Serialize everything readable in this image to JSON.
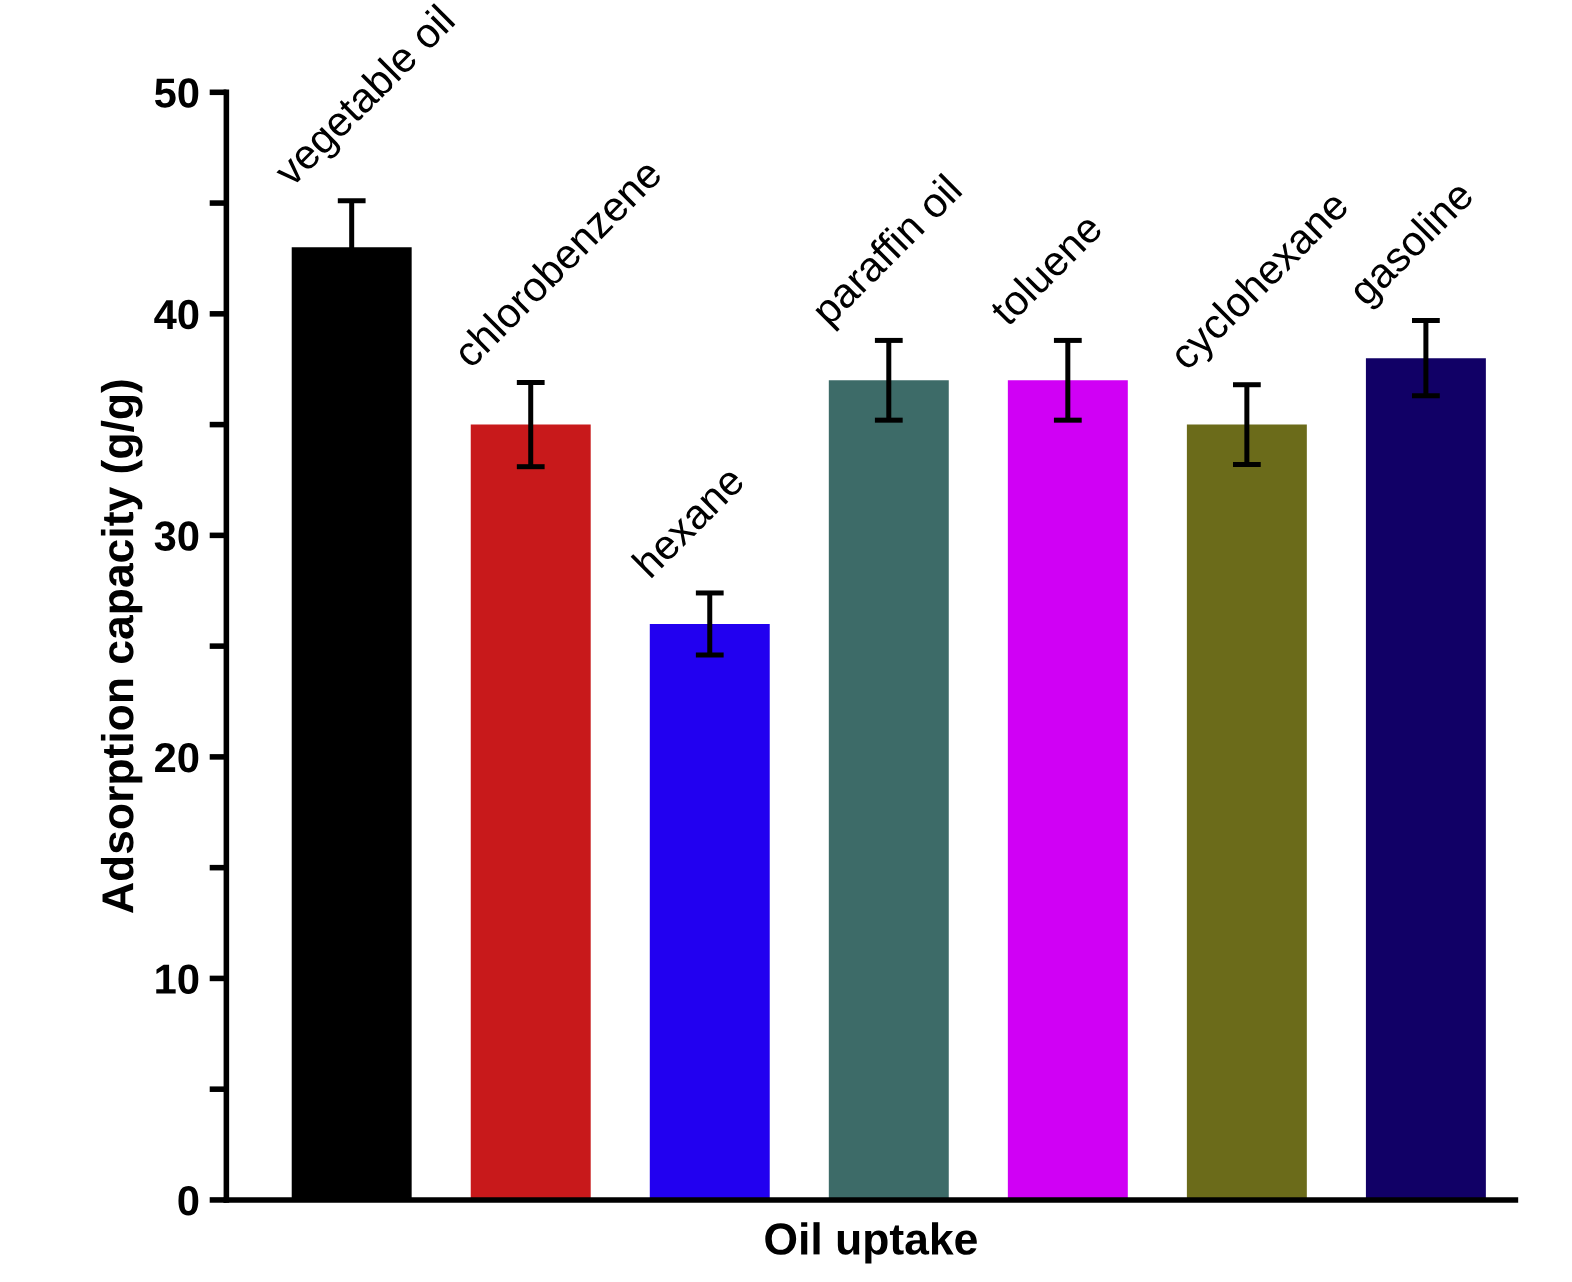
{
  "chart_data": {
    "type": "bar",
    "xlabel": "Oil uptake",
    "ylabel": "Adsorption capacity (g/g)",
    "categories": [
      "vegetable oil",
      "chlorobenzene",
      "hexane",
      "paraffin oil",
      "toluene",
      "cyclohexane",
      "gasoline"
    ],
    "values": [
      43,
      35,
      26,
      37,
      37,
      35,
      38
    ],
    "errors": [
      2.1,
      1.9,
      1.4,
      1.8,
      1.8,
      1.8,
      1.7
    ],
    "colors": [
      "#000000",
      "#c8191b",
      "#2200f0",
      "#3d6b68",
      "#d000f5",
      "#6b6b1a",
      "#110066"
    ],
    "ylim": [
      0,
      50
    ],
    "yticks": [
      0,
      {
        "value": 5,
        "label": null
      },
      10,
      {
        "value": 15,
        "label": null
      },
      20,
      {
        "value": 25,
        "label": null
      },
      30,
      {
        "value": 35,
        "label": null
      },
      40,
      {
        "value": 45,
        "label": null
      },
      50
    ],
    "grid": false,
    "legend": false
  }
}
